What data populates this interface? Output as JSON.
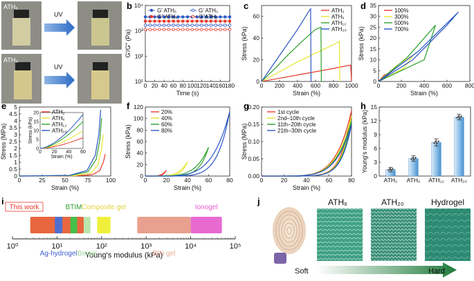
{
  "panel_labels": [
    "a",
    "b",
    "c",
    "d",
    "e",
    "f",
    "g",
    "h",
    "i",
    "j"
  ],
  "photos": {
    "top_left": "ATH₆",
    "bottom_left": "ATH₀",
    "arrow_top": "UV",
    "arrow_bottom": "UV"
  },
  "fingerprint": {
    "labels": [
      "ATH₆",
      "ATH₂₀",
      "Hydrogel"
    ],
    "soft": "Soft",
    "hard": "Hard"
  },
  "colors": {
    "red": "#e8392c",
    "yellow": "#e5e532",
    "green": "#2aa02a",
    "blue": "#2b55c5",
    "lightblue": "#4aa3d8"
  },
  "chart_data": [
    {
      "panel": "b",
      "type": "line",
      "xlabel": "Time (s)",
      "ylabel": "G′/G″ (Pa)",
      "xlim": [
        0,
        180
      ],
      "ylim_log": [
        1,
        4
      ],
      "yscale": "log",
      "xticks": [
        0,
        20,
        40,
        60,
        80,
        100,
        120,
        140,
        160,
        180
      ],
      "yticks": [
        "10¹",
        "10²",
        "10³",
        "10⁴"
      ],
      "series": [
        {
          "name": "G′ ATH₆",
          "color": "#2b55c5",
          "filled": true,
          "logy": 3.55
        },
        {
          "name": "G′ ATH₀",
          "color": "#2b55c5",
          "filled": false,
          "logy": 3.22
        },
        {
          "name": "G″ ATH₆",
          "color": "#e8392c",
          "filled": true,
          "logy": 3.38
        },
        {
          "name": "G″ATH₀",
          "color": "#e8392c",
          "filled": false,
          "logy": 3.05
        }
      ]
    },
    {
      "panel": "c",
      "type": "line",
      "xlabel": "Strain (%)",
      "ylabel": "Stress (kPa)",
      "xlim": [
        0,
        1000
      ],
      "ylim": [
        0,
        70
      ],
      "xticks": [
        0,
        200,
        400,
        600,
        800,
        1000
      ],
      "yticks": [
        0,
        20,
        40,
        60
      ],
      "series": [
        {
          "name": "ATH₂",
          "color": "#e8392c",
          "x": [
            0,
            200,
            400,
            600,
            800,
            980,
            990,
            1000
          ],
          "y": [
            0,
            3,
            6,
            9,
            12,
            15,
            15,
            0
          ]
        },
        {
          "name": "ATH₆",
          "color": "#e5e532",
          "x": [
            0,
            200,
            400,
            600,
            850,
            865,
            870
          ],
          "y": [
            0,
            9,
            18,
            26,
            36,
            37,
            0
          ]
        },
        {
          "name": "ATH₁₂",
          "color": "#2aa02a",
          "x": [
            0,
            150,
            300,
            450,
            600,
            660,
            665
          ],
          "y": [
            0,
            12,
            25,
            37,
            48,
            50,
            0
          ]
        },
        {
          "name": "ATH₂₀",
          "color": "#2b55c5",
          "x": [
            0,
            100,
            250,
            400,
            520,
            545,
            550
          ],
          "y": [
            0,
            12,
            30,
            48,
            64,
            67,
            0
          ]
        }
      ]
    },
    {
      "panel": "d",
      "type": "line",
      "xlabel": "Strain (%)",
      "ylabel": "Stress (kPa)",
      "xlim": [
        0,
        800
      ],
      "ylim": [
        0,
        35
      ],
      "xticks": [
        0,
        200,
        400,
        600,
        800
      ],
      "yticks": [
        0,
        5,
        10,
        15,
        20,
        25,
        30,
        35
      ],
      "series": [
        {
          "name": "100%",
          "color": "#e8392c",
          "x": [
            0,
            50,
            100,
            60,
            0
          ],
          "y": [
            0,
            3,
            4,
            1.5,
            0
          ]
        },
        {
          "name": "300%",
          "color": "#e5e532",
          "x": [
            0,
            150,
            300,
            220,
            0
          ],
          "y": [
            0,
            7,
            12,
            6,
            0
          ]
        },
        {
          "name": "500%",
          "color": "#2aa02a",
          "x": [
            0,
            250,
            500,
            400,
            0
          ],
          "y": [
            0,
            11,
            26,
            10,
            0
          ]
        },
        {
          "name": "700%",
          "color": "#2b55c5",
          "x": [
            0,
            350,
            700,
            600,
            300,
            0
          ],
          "y": [
            0,
            14,
            32,
            26,
            10,
            0
          ]
        }
      ]
    },
    {
      "panel": "e",
      "type": "line",
      "xlabel": "Strain (%)",
      "ylabel": "Stress (MPa)",
      "xlim": [
        0,
        100
      ],
      "ylim": [
        0,
        5
      ],
      "xticks": [
        0,
        25,
        50,
        75,
        100
      ],
      "yticks": [
        0,
        0.5,
        1,
        1.5,
        2,
        2.5,
        3,
        3.5,
        4,
        4.5,
        5
      ],
      "series": [
        {
          "name": "ATH₂",
          "color": "#e8392c",
          "x": [
            0,
            60,
            80,
            88,
            92,
            94
          ],
          "y": [
            0,
            0.02,
            0.1,
            0.4,
            1.0,
            1.6
          ]
        },
        {
          "name": "ATH₆",
          "color": "#e5e532",
          "x": [
            0,
            60,
            78,
            86,
            90,
            92
          ],
          "y": [
            0,
            0.03,
            0.2,
            0.8,
            2.0,
            3.0
          ]
        },
        {
          "name": "ATH₁₂",
          "color": "#2aa02a",
          "x": [
            0,
            55,
            75,
            84,
            88,
            90
          ],
          "y": [
            0,
            0.04,
            0.3,
            1.2,
            2.6,
            4.2
          ]
        },
        {
          "name": "ATH₂₀",
          "color": "#2b55c5",
          "x": [
            0,
            55,
            74,
            83,
            87,
            89
          ],
          "y": [
            0,
            0.05,
            0.4,
            1.5,
            3.0,
            4.8
          ]
        }
      ],
      "inset": {
        "xlabel": "Strain (%)",
        "ylabel": "Stress (kPa)",
        "xlim": [
          0,
          60
        ],
        "ylim": [
          0,
          20
        ],
        "xticks": [
          0,
          20,
          40,
          60
        ],
        "yticks": [
          0,
          5,
          10,
          15,
          20
        ]
      }
    },
    {
      "panel": "f",
      "type": "line",
      "xlabel": "Strain (%)",
      "ylabel": "Stress (kPa)",
      "xlim": [
        0,
        80
      ],
      "ylim": [
        0,
        120
      ],
      "xticks": [
        0,
        20,
        40,
        60,
        80
      ],
      "yticks": [
        0,
        20,
        40,
        60,
        80,
        100,
        120
      ],
      "series": [
        {
          "name": "20%",
          "color": "#e8392c"
        },
        {
          "name": "40%",
          "color": "#e5e532"
        },
        {
          "name": "60%",
          "color": "#2aa02a"
        },
        {
          "name": "80%",
          "color": "#2b55c5",
          "x": [
            0,
            20,
            40,
            60,
            70,
            75,
            80,
            78,
            70,
            60,
            40,
            20,
            0
          ],
          "y": [
            0,
            3,
            8,
            20,
            40,
            65,
            112,
            80,
            38,
            15,
            4,
            1,
            0
          ]
        }
      ]
    },
    {
      "panel": "g",
      "type": "line",
      "xlabel": "Strain (%)",
      "ylabel": "Stress (MPa)",
      "xlim": [
        0,
        80
      ],
      "ylim": [
        0,
        0.2
      ],
      "xticks": [
        0,
        20,
        40,
        60,
        80
      ],
      "yticks": [
        0,
        0.05,
        0.1,
        0.15,
        0.2
      ],
      "series": [
        {
          "name": "1st cycle",
          "color": "#e8392c"
        },
        {
          "name": "2nd–10th cycle",
          "color": "#e5e532"
        },
        {
          "name": "11th–20th cycle",
          "color": "#2aa02a"
        },
        {
          "name": "21th–30th cycle",
          "color": "#2b55c5"
        }
      ]
    },
    {
      "panel": "h",
      "type": "bar",
      "ylabel": "Young's modulus (kPa)",
      "categories": [
        "ATH₂",
        "ATH₆",
        "ATH₁₂",
        "ATH₂₀"
      ],
      "values": [
        1.4,
        3.8,
        7.3,
        12.8
      ],
      "errors": [
        0.5,
        0.6,
        0.8,
        0.6
      ],
      "ylim": [
        0,
        15
      ],
      "yticks": [
        0,
        3,
        6,
        9,
        12,
        15
      ]
    },
    {
      "panel": "i",
      "type": "bar",
      "xlabel": "Young's modulus (kPa)",
      "xscale": "log",
      "xlim_log": [
        0,
        5
      ],
      "xticks": [
        "10⁰",
        "10¹",
        "10²",
        "10³",
        "10⁴",
        "10⁵"
      ],
      "ranges": [
        {
          "name": "This work",
          "lo": 0.4,
          "hi": 1.6,
          "color": "#e8673e"
        },
        {
          "name": "Ag-hydrogel",
          "lo": 0.95,
          "hi": 1.12,
          "color": "#4f6fd0"
        },
        {
          "name": "BTIM",
          "lo": 1.3,
          "hi": 1.45,
          "color": "#45c04a"
        },
        {
          "name": "Biogel",
          "lo": 1.6,
          "hi": 1.75,
          "color": "#b9e6ad"
        },
        {
          "name": "Composite gel",
          "lo": 1.9,
          "hi": 2.2,
          "color": "#f0f03c"
        },
        {
          "name": "BIN gel",
          "lo": 2.8,
          "hi": 4.0,
          "color": "#eaa08e"
        },
        {
          "name": "Ionogel",
          "lo": 4.0,
          "hi": 4.7,
          "color": "#e86ad0"
        }
      ]
    }
  ]
}
